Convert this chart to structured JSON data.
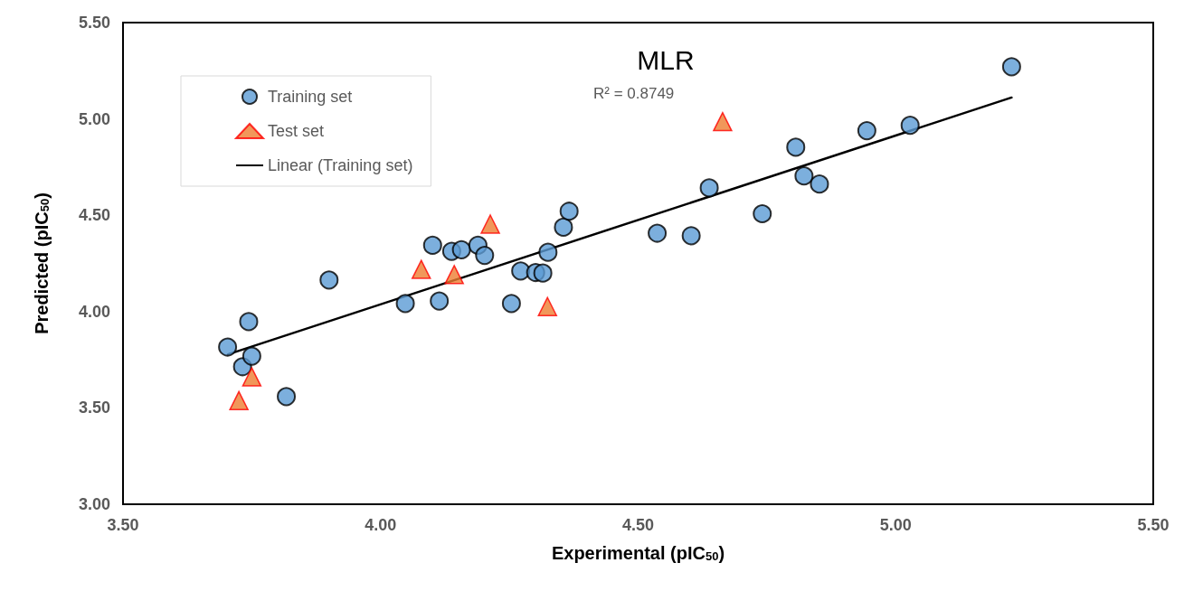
{
  "chart_data": {
    "type": "scatter",
    "title": "MLR",
    "xlabel": "Experimental (pIC$_{50}$)",
    "ylabel": "Predicted (pIC$_{50}$)",
    "annotations": [
      "R² = 0.8749"
    ],
    "xlim": [
      3.5,
      5.5
    ],
    "xticks": [
      {
        "value": 3.5,
        "label": "3.50"
      },
      {
        "value": 4,
        "label": "4.00"
      },
      {
        "value": 4.5,
        "label": "4.50"
      },
      {
        "value": 5,
        "label": "5.00"
      },
      {
        "value": 5.5,
        "label": "5.50"
      }
    ],
    "ylim": [
      3,
      5.5
    ],
    "yticks": [
      {
        "value": 3,
        "label": "3.00"
      },
      {
        "value": 3.5,
        "label": "3.50"
      },
      {
        "value": 4,
        "label": "4.00"
      },
      {
        "value": 4.5,
        "label": "4.50"
      },
      {
        "value": 5,
        "label": "5.00"
      },
      {
        "value": 5.5,
        "label": "5.50"
      }
    ],
    "grid": false,
    "legend": "top left",
    "series": [
      {
        "name": "Training set",
        "marker": "circle",
        "color": "#5b9bd5",
        "x": [
          3.703,
          3.744,
          3.732,
          3.75,
          3.817,
          3.9,
          4.048,
          4.114,
          4.101,
          4.138,
          4.157,
          4.189,
          4.202,
          4.254,
          4.272,
          4.301,
          4.315,
          4.325,
          4.355,
          4.366,
          4.537,
          4.603,
          4.638,
          4.741,
          4.806,
          4.822,
          4.852,
          4.944,
          5.028,
          5.225
        ],
        "values": [
          3.816,
          3.948,
          3.714,
          3.769,
          3.559,
          4.164,
          4.042,
          4.055,
          4.344,
          4.313,
          4.321,
          4.344,
          4.292,
          4.042,
          4.211,
          4.203,
          4.2,
          4.308,
          4.438,
          4.521,
          4.407,
          4.394,
          4.642,
          4.508,
          4.853,
          4.704,
          4.662,
          4.939,
          4.967,
          5.271
        ]
      },
      {
        "name": "Test set",
        "marker": "triangle",
        "color": "#ed7d31",
        "x": [
          3.725,
          3.75,
          4.079,
          4.143,
          4.213,
          4.324,
          4.664
        ],
        "values": [
          3.538,
          3.661,
          4.219,
          4.192,
          4.454,
          4.026,
          4.986
        ]
      },
      {
        "name": "Linear (Training set)",
        "type": "line",
        "marker": "none",
        "line_style": "solid",
        "color": "#000000",
        "x": [
          3.704,
          5.225
        ],
        "values": [
          3.778,
          5.111
        ]
      }
    ]
  }
}
